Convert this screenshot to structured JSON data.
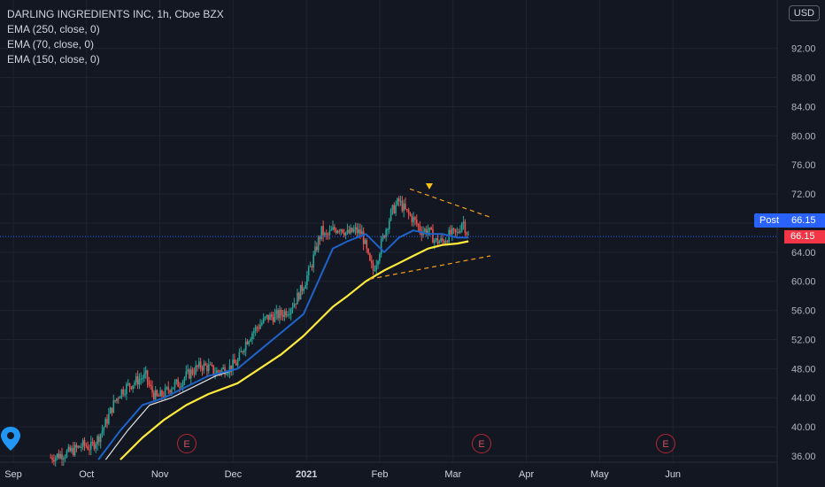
{
  "header": {
    "title": "DARLING INGREDIENTS INC, 1h, Cboe BZX",
    "indicators": [
      "EMA (250, close, 0)",
      "EMA (70, close, 0)",
      "EMA (150, close, 0)"
    ],
    "currency": "USD"
  },
  "price_tags": {
    "post_label": "Post",
    "post_value": "66.15",
    "last_value": "66.15"
  },
  "earnings_marker": "E",
  "colors": {
    "background": "#131722",
    "up_candle": "#26a69a",
    "down_candle": "#ef5350",
    "ema_250": "#ffeb3b",
    "ema_70": "#1e63c9",
    "ema_150": "#e0e0e0",
    "trendline": "#f7a21b",
    "post_tag": "#2962ff",
    "price_tag": "#f23645"
  },
  "icons": {
    "location_pin": "map-pin-icon",
    "pattern_marker": "triangle-down-icon"
  },
  "chart_data": {
    "type": "line",
    "title": "DARLING INGREDIENTS INC, 1h, Cboe BZX",
    "x_tick_labels": [
      "Sep",
      "Oct",
      "Nov",
      "Dec",
      "2021",
      "Feb",
      "Mar",
      "Apr",
      "May",
      "Jun"
    ],
    "y_tick_labels": [
      "36.00",
      "40.00",
      "44.00",
      "48.00",
      "52.00",
      "56.00",
      "60.00",
      "64.00",
      "68.00",
      "72.00",
      "76.00",
      "80.00",
      "84.00",
      "88.00",
      "92.00"
    ],
    "ylim": [
      35.3,
      95.5
    ],
    "grid": true,
    "x_unit": "months since 1 Sep 2020",
    "price": {
      "name": "DARLING INGREDIENTS INC",
      "x": [
        0.45,
        0.7,
        0.9,
        1.0,
        1.1,
        1.2,
        1.3,
        1.4,
        1.5,
        1.6,
        1.7,
        1.75,
        1.8,
        1.85,
        1.9,
        2.0,
        2.1,
        2.2,
        2.3,
        2.4,
        2.5,
        2.6,
        2.7,
        2.8,
        2.9,
        3.0,
        3.1,
        3.2,
        3.3,
        3.4,
        3.5,
        3.6,
        3.7,
        3.8,
        3.9,
        4.0,
        4.1,
        4.15,
        4.2,
        4.3,
        4.4,
        4.5,
        4.6,
        4.7,
        4.8,
        4.85,
        4.9,
        5.0,
        5.1,
        5.2,
        5.3,
        5.4,
        5.5,
        5.6,
        5.7,
        5.8,
        5.9,
        6.0,
        6.07,
        6.15
      ],
      "values": [
        35.8,
        36.5,
        37.5,
        37.2,
        38.5,
        40.5,
        43.0,
        44.8,
        45.6,
        46.2,
        46.8,
        47.0,
        45.4,
        44.6,
        44.0,
        44.6,
        45.6,
        46.0,
        47.0,
        47.8,
        48.4,
        48.2,
        47.5,
        47.9,
        48.2,
        48.9,
        51.5,
        53.0,
        54.0,
        55.0,
        55.2,
        55.5,
        56.2,
        57.5,
        59.5,
        62.0,
        65.5,
        67.0,
        66.0,
        67.0,
        67.5,
        66.5,
        67.0,
        66.5,
        62.5,
        61.5,
        63.0,
        66.5,
        69.5,
        71.0,
        69.5,
        68.5,
        67.0,
        67.0,
        65.5,
        65.5,
        66.5,
        66.5,
        68.5,
        66.15
      ]
    },
    "series": [
      {
        "name": "EMA (250, close, 0)",
        "x": [
          1.4,
          1.7,
          2.0,
          2.3,
          2.6,
          3.0,
          3.3,
          3.6,
          3.9,
          4.1,
          4.3,
          4.5,
          4.75,
          5.0,
          5.2,
          5.4,
          5.6,
          5.8,
          6.0,
          6.15
        ],
        "values": [
          35.5,
          38.5,
          41.0,
          43.0,
          44.5,
          46.0,
          48.0,
          50.0,
          52.5,
          54.5,
          56.5,
          58.0,
          60.0,
          61.5,
          62.5,
          63.5,
          64.5,
          65.0,
          65.2,
          65.5
        ]
      },
      {
        "name": "EMA (70, close, 0)",
        "x": [
          1.1,
          1.4,
          1.7,
          2.0,
          2.3,
          2.6,
          3.0,
          3.3,
          3.6,
          3.9,
          4.1,
          4.3,
          4.5,
          4.75,
          5.0,
          5.2,
          5.4,
          5.6,
          5.8,
          6.0,
          6.15
        ],
        "values": [
          35.5,
          39.5,
          43.0,
          44.0,
          45.5,
          47.0,
          48.0,
          50.5,
          53.0,
          55.5,
          60.0,
          64.5,
          65.5,
          66.5,
          64.0,
          66.0,
          67.0,
          66.5,
          66.5,
          66.0,
          66.0
        ]
      },
      {
        "name": "EMA (150, close, 0)",
        "x": [
          1.2,
          1.5,
          1.8,
          2.1,
          2.4,
          2.7,
          3.0,
          3.3,
          3.6,
          3.9,
          4.1,
          4.3,
          4.5,
          4.75,
          5.0,
          5.2,
          5.4,
          5.6,
          5.8,
          6.0,
          6.15
        ],
        "values": [
          35.5,
          39.5,
          43.0,
          44.0,
          45.5,
          47.0,
          48.0,
          50.5,
          53.0,
          55.5,
          60.0,
          64.5,
          65.5,
          66.5,
          64.0,
          66.0,
          67.0,
          66.5,
          66.5,
          66.0,
          66.0
        ]
      }
    ],
    "trendlines": [
      {
        "x": [
          5.35,
          6.45
        ],
        "values": [
          72.7,
          68.8
        ]
      },
      {
        "x": [
          4.8,
          6.45
        ],
        "values": [
          60.3,
          63.5
        ]
      }
    ],
    "earnings_x": [
      2.0,
      6.05,
      9.3
    ],
    "last_price": 66.15
  }
}
